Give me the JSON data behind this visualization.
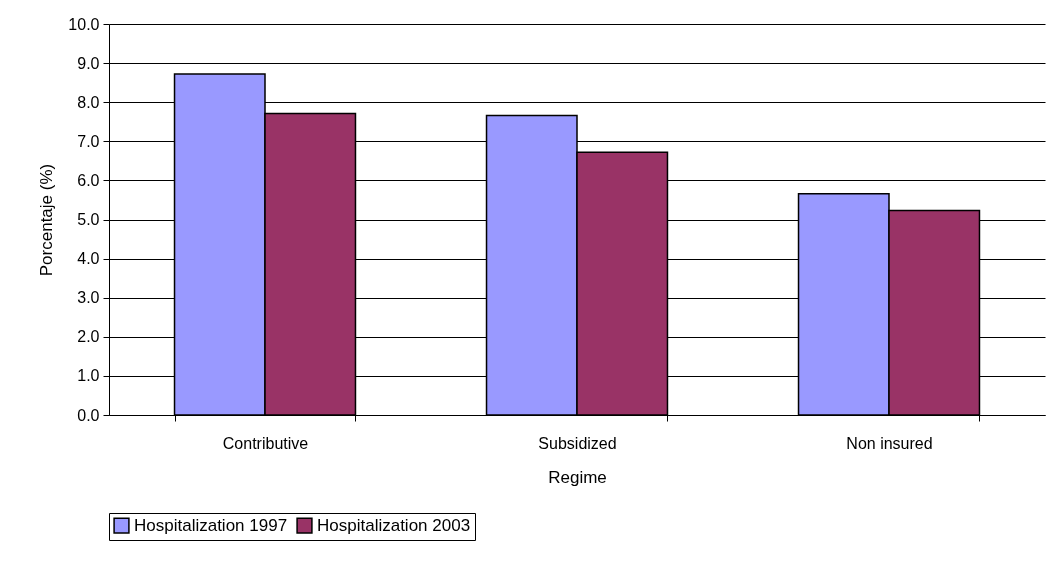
{
  "chart_data": {
    "type": "bar",
    "xlabel": "Regime",
    "ylabel": "Porcentaje (%)",
    "categories": [
      "Contributive",
      "Subsidized",
      "Non insured"
    ],
    "series": [
      {
        "name": "Hospitalization 1997",
        "color": "#9999ff",
        "values": [
          8.72,
          7.66,
          5.66
        ]
      },
      {
        "name": "Hospitalization 2003",
        "color": "#993366",
        "values": [
          7.71,
          6.72,
          5.23
        ]
      }
    ],
    "ylim": [
      0,
      10
    ],
    "yticks": [
      {
        "value": 0,
        "label": "0.0"
      },
      {
        "value": 1,
        "label": "1.0"
      },
      {
        "value": 2,
        "label": "2.0"
      },
      {
        "value": 3,
        "label": "3.0"
      },
      {
        "value": 4,
        "label": "4.0"
      },
      {
        "value": 5,
        "label": "5.0"
      },
      {
        "value": 6,
        "label": "6.0"
      },
      {
        "value": 7,
        "label": "7.0"
      },
      {
        "value": 8,
        "label": "8.0"
      },
      {
        "value": 9,
        "label": "9.0"
      },
      {
        "value": 10,
        "label": "10.0"
      }
    ],
    "grid": "y",
    "legend": "bottom"
  }
}
